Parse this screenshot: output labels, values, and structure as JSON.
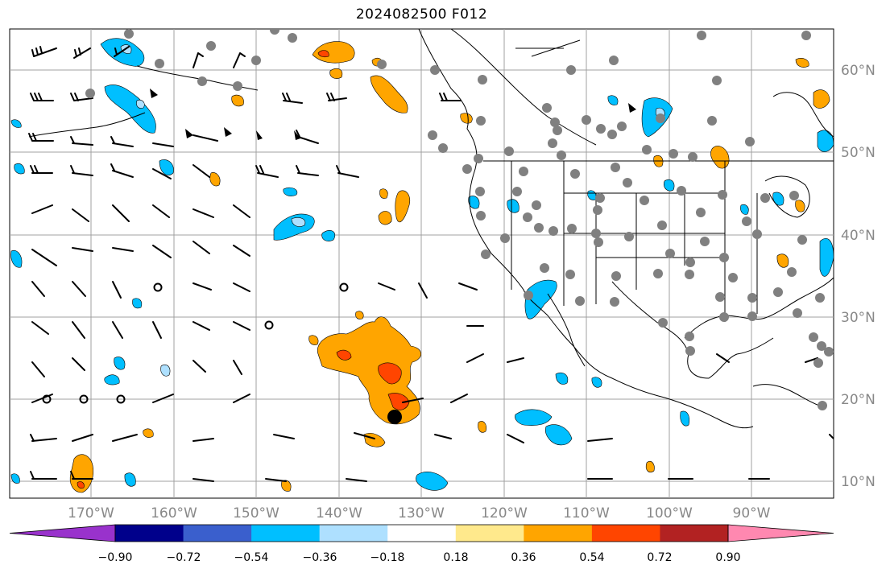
{
  "title": "2024082500 F012",
  "map": {
    "lon_labels": [
      "170°W",
      "160°W",
      "150°W",
      "140°W",
      "130°W",
      "120°W",
      "110°W",
      "100°W",
      "90°W"
    ],
    "lat_labels": [
      "60°N",
      "50°N",
      "40°N",
      "30°N",
      "20°N",
      "10°N"
    ],
    "grid": true
  },
  "colorbar": {
    "ticks": [
      "−0.90",
      "−0.72",
      "−0.54",
      "−0.36",
      "−0.18",
      "0.18",
      "0.36",
      "0.54",
      "0.72",
      "0.90"
    ],
    "colors": [
      "#9932cc",
      "#00008b",
      "#3a5fcd",
      "#00bfff",
      "#aee0ff",
      "#ffffff",
      "#ffe98c",
      "#ffa500",
      "#ff4500",
      "#b22222",
      "#ff88b0"
    ]
  },
  "field_colors": {
    "positive_light": "#ffe98c",
    "positive_mid": "#ffa500",
    "positive_strong": "#ff4500",
    "negative_light": "#aee0ff",
    "negative_mid": "#00bfff",
    "station_dot": "#808080"
  }
}
